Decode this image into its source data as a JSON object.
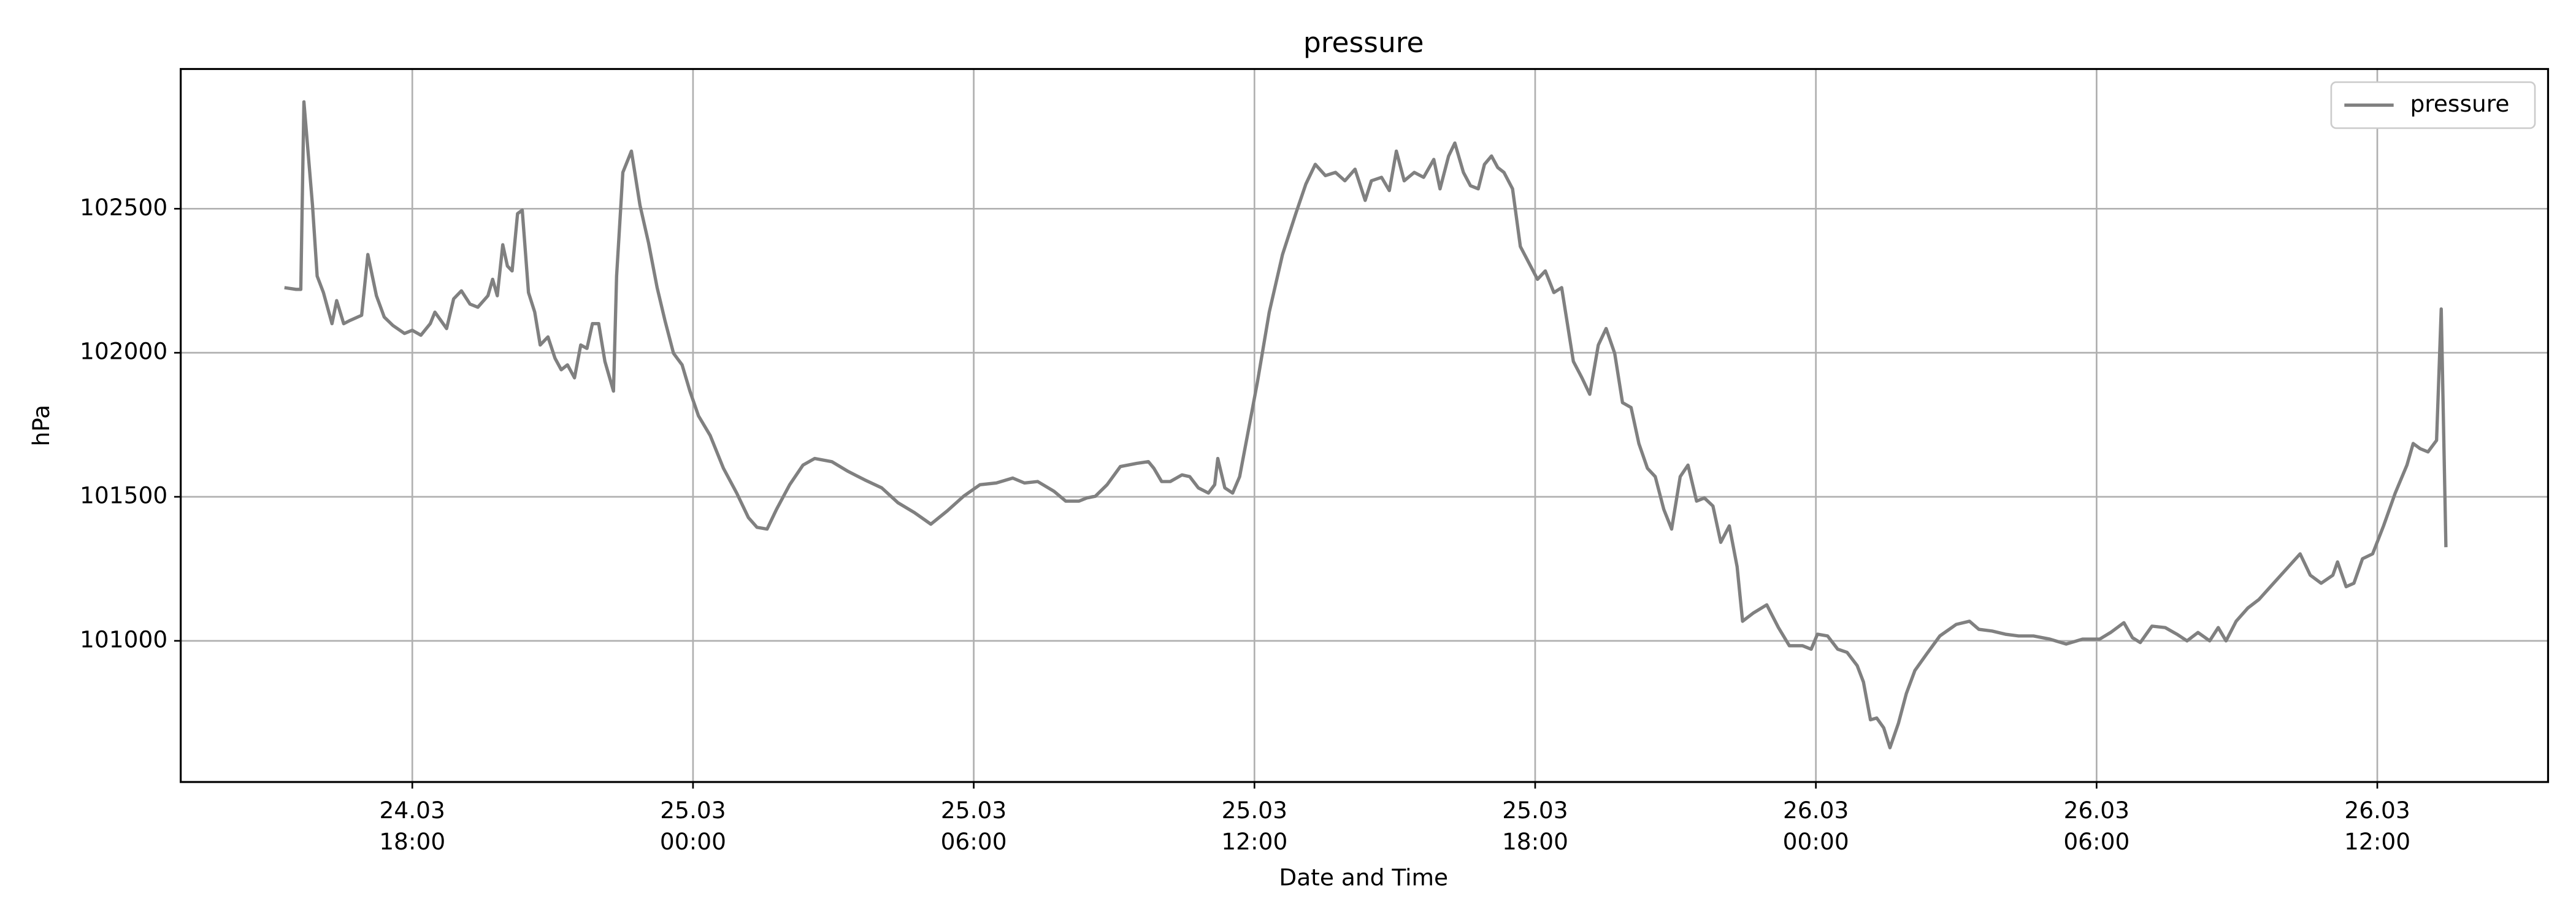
{
  "chart_data": {
    "type": "line",
    "title": "pressure",
    "xlabel": "Date and Time",
    "ylabel": "hPa",
    "x": [
      "24.03 15:16",
      "24.03 15:31",
      "24.03 15:37",
      "24.03 15:41",
      "24.03 15:52",
      "24.03 15:58",
      "24.03 16:06",
      "24.03 16:17",
      "24.03 16:23",
      "24.03 16:32",
      "24.03 16:40",
      "24.03 16:55",
      "24.03 17:03",
      "24.03 17:14",
      "24.03 17:24",
      "24.03 17:35",
      "24.03 17:50",
      "24.03 18:00",
      "24.03 18:11",
      "24.03 18:23",
      "24.03 18:29",
      "24.03 18:44",
      "24.03 18:53",
      "24.03 19:03",
      "24.03 19:14",
      "24.03 19:24",
      "24.03 19:37",
      "24.03 19:43",
      "24.03 19:49",
      "24.03 19:56",
      "24.03 20:02",
      "24.03 20:08",
      "24.03 20:15",
      "24.03 20:21",
      "24.03 20:29",
      "24.03 20:37",
      "24.03 20:44",
      "24.03 20:54",
      "24.03 21:03",
      "24.03 21:11",
      "24.03 21:19",
      "24.03 21:28",
      "24.03 21:36",
      "24.03 21:44",
      "24.03 21:51",
      "24.03 21:59",
      "24.03 22:07",
      "24.03 22:18",
      "24.03 22:22",
      "24.03 22:30",
      "24.03 22:41",
      "24.03 22:52",
      "24.03 23:03",
      "24.03 23:14",
      "24.03 23:24",
      "24.03 23:35",
      "24.03 23:46",
      "24.03 23:56",
      "25.03 00:07",
      "25.03 00:22",
      "25.03 00:39",
      "25.03 00:56",
      "25.03 01:11",
      "25.03 01:22",
      "25.03 01:35",
      "25.03 01:47",
      "25.03 02:04",
      "25.03 02:21",
      "25.03 02:36",
      "25.03 02:58",
      "25.03 03:19",
      "25.03 03:40",
      "25.03 04:02",
      "25.03 04:23",
      "25.03 04:44",
      "25.03 05:05",
      "25.03 05:26",
      "25.03 05:47",
      "25.03 06:08",
      "25.03 06:29",
      "25.03 06:50",
      "25.03 07:05",
      "25.03 07:22",
      "25.03 07:43",
      "25.03 07:58",
      "25.03 08:15",
      "25.03 08:25",
      "25.03 08:36",
      "25.03 08:51",
      "25.03 09:08",
      "25.03 09:29",
      "25.03 09:44",
      "25.03 09:51",
      "25.03 10:01",
      "25.03 10:12",
      "25.03 10:27",
      "25.03 10:37",
      "25.03 10:48",
      "25.03 11:01",
      "25.03 11:09",
      "25.03 11:13",
      "25.03 11:22",
      "25.03 11:32",
      "25.03 11:41",
      "25.03 11:51",
      "25.03 12:04",
      "25.03 12:19",
      "25.03 12:36",
      "25.03 12:53",
      "25.03 13:06",
      "25.03 13:18",
      "25.03 13:31",
      "25.03 13:44",
      "25.03 13:56",
      "25.03 14:09",
      "25.03 14:22",
      "25.03 14:30",
      "25.03 14:43",
      "25.03 14:53",
      "25.03 15:02",
      "25.03 15:12",
      "25.03 15:25",
      "25.03 15:37",
      "25.03 15:50",
      "25.03 15:58",
      "25.03 16:09",
      "25.03 16:17",
      "25.03 16:28",
      "25.03 16:37",
      "25.03 16:47",
      "25.03 16:55",
      "25.03 17:04",
      "25.03 17:12",
      "25.03 17:20",
      "25.03 17:31",
      "25.03 17:41",
      "25.03 17:52",
      "25.03 18:03",
      "25.03 18:13",
      "25.03 18:24",
      "25.03 18:34",
      "25.03 18:49",
      "25.03 19:00",
      "25.03 19:10",
      "25.03 19:21",
      "25.03 19:31",
      "25.03 19:42",
      "25.03 19:52",
      "25.03 20:03",
      "25.03 20:13",
      "25.03 20:24",
      "25.03 20:34",
      "25.03 20:45",
      "25.03 20:55",
      "25.03 21:06",
      "25.03 21:16",
      "25.03 21:27",
      "25.03 21:37",
      "25.03 21:48",
      "25.03 21:58",
      "25.03 22:09",
      "25.03 22:19",
      "25.03 22:26",
      "25.03 22:40",
      "25.03 22:57",
      "25.03 23:12",
      "25.03 23:26",
      "25.03 23:43",
      "25.03 23:54",
      "26.03 00:02",
      "26.03 00:15",
      "26.03 00:28",
      "26.03 00:40",
      "26.03 00:53",
      "26.03 01:01",
      "26.03 01:10",
      "26.03 01:18",
      "26.03 01:27",
      "26.03 01:35",
      "26.03 01:46",
      "26.03 01:56",
      "26.03 02:07",
      "26.03 02:22",
      "26.03 02:39",
      "26.03 03:00",
      "26.03 03:17",
      "26.03 03:29",
      "26.03 03:46",
      "26.03 04:03",
      "26.03 04:20",
      "26.03 04:39",
      "26.03 05:00",
      "26.03 05:21",
      "26.03 05:42",
      "26.03 06:04",
      "26.03 06:18",
      "26.03 06:35",
      "26.03 06:46",
      "26.03 06:56",
      "26.03 07:11",
      "26.03 07:28",
      "26.03 07:43",
      "26.03 07:56",
      "26.03 08:10",
      "26.03 08:25",
      "26.03 08:36",
      "26.03 08:46",
      "26.03 08:59",
      "26.03 09:14",
      "26.03 09:28",
      "26.03 09:45",
      "26.03 10:06",
      "26.03 10:21",
      "26.03 10:34",
      "26.03 10:48",
      "26.03 11:03",
      "26.03 11:09",
      "26.03 11:20",
      "26.03 11:30",
      "26.03 11:41",
      "26.03 11:54",
      "26.03 12:08",
      "26.03 12:23",
      "26.03 12:38",
      "26.03 12:46",
      "26.03 12:55",
      "26.03 13:05",
      "26.03 13:16",
      "26.03 13:22",
      "26.03 13:28"
    ],
    "series": [
      {
        "name": "pressure",
        "color": "#808080",
        "values": [
          102226,
          102220,
          102220,
          102871,
          102512,
          102266,
          102209,
          102101,
          102181,
          102101,
          102112,
          102130,
          102341,
          102198,
          102124,
          102095,
          102067,
          102078,
          102061,
          102101,
          102141,
          102084,
          102187,
          102215,
          102169,
          102158,
          102198,
          102255,
          102198,
          102375,
          102301,
          102284,
          102483,
          102495,
          102209,
          102141,
          102027,
          102055,
          101981,
          101941,
          101958,
          101913,
          102027,
          102015,
          102101,
          102101,
          101970,
          101867,
          102266,
          102626,
          102700,
          102512,
          102381,
          102226,
          102112,
          101998,
          101958,
          101867,
          101781,
          101713,
          101599,
          101513,
          101428,
          101394,
          101388,
          101456,
          101542,
          101610,
          101633,
          101622,
          101588,
          101559,
          101531,
          101479,
          101445,
          101405,
          101451,
          101502,
          101542,
          101548,
          101565,
          101548,
          101553,
          101519,
          101485,
          101485,
          101496,
          101502,
          101542,
          101605,
          101616,
          101622,
          101599,
          101553,
          101553,
          101576,
          101570,
          101531,
          101513,
          101542,
          101633,
          101531,
          101513,
          101570,
          101713,
          101901,
          102141,
          102341,
          102483,
          102586,
          102654,
          102615,
          102626,
          102597,
          102637,
          102529,
          102597,
          102609,
          102563,
          102700,
          102597,
          102626,
          102609,
          102671,
          102569,
          102683,
          102728,
          102626,
          102580,
          102569,
          102654,
          102683,
          102643,
          102626,
          102569,
          102369,
          102312,
          102255,
          102284,
          102209,
          102226,
          101970,
          101913,
          101856,
          102027,
          102084,
          101998,
          101827,
          101810,
          101685,
          101599,
          101570,
          101456,
          101388,
          101570,
          101610,
          101485,
          101496,
          101468,
          101342,
          101399,
          101257,
          101068,
          101097,
          101125,
          101046,
          100983,
          100983,
          100971,
          101023,
          101017,
          100971,
          100960,
          100914,
          100857,
          100726,
          100732,
          100698,
          100629,
          100715,
          100817,
          100897,
          100954,
          101017,
          101057,
          101068,
          101040,
          101034,
          101023,
          101017,
          101017,
          101006,
          100989,
          101006,
          101006,
          101029,
          101063,
          101011,
          100994,
          101051,
          101046,
          101023,
          101000,
          101029,
          101000,
          101046,
          101000,
          101068,
          101114,
          101143,
          101194,
          101257,
          101302,
          101228,
          101200,
          101228,
          101274,
          101188,
          101200,
          101285,
          101302,
          101399,
          101513,
          101610,
          101685,
          101667,
          101656,
          101696,
          102152,
          101325
        ]
      }
    ],
    "xlim": [
      "24.03 13:03",
      "26.03 15:39"
    ],
    "xticks": [
      "24.03 18:00",
      "25.03 00:00",
      "25.03 06:00",
      "25.03 12:00",
      "25.03 18:00",
      "26.03 00:00",
      "26.03 06:00",
      "26.03 12:00"
    ],
    "ylim": [
      100510,
      102985
    ],
    "yticks": [
      101000,
      101500,
      102000,
      102500
    ],
    "grid": true,
    "legend": "upper right"
  }
}
